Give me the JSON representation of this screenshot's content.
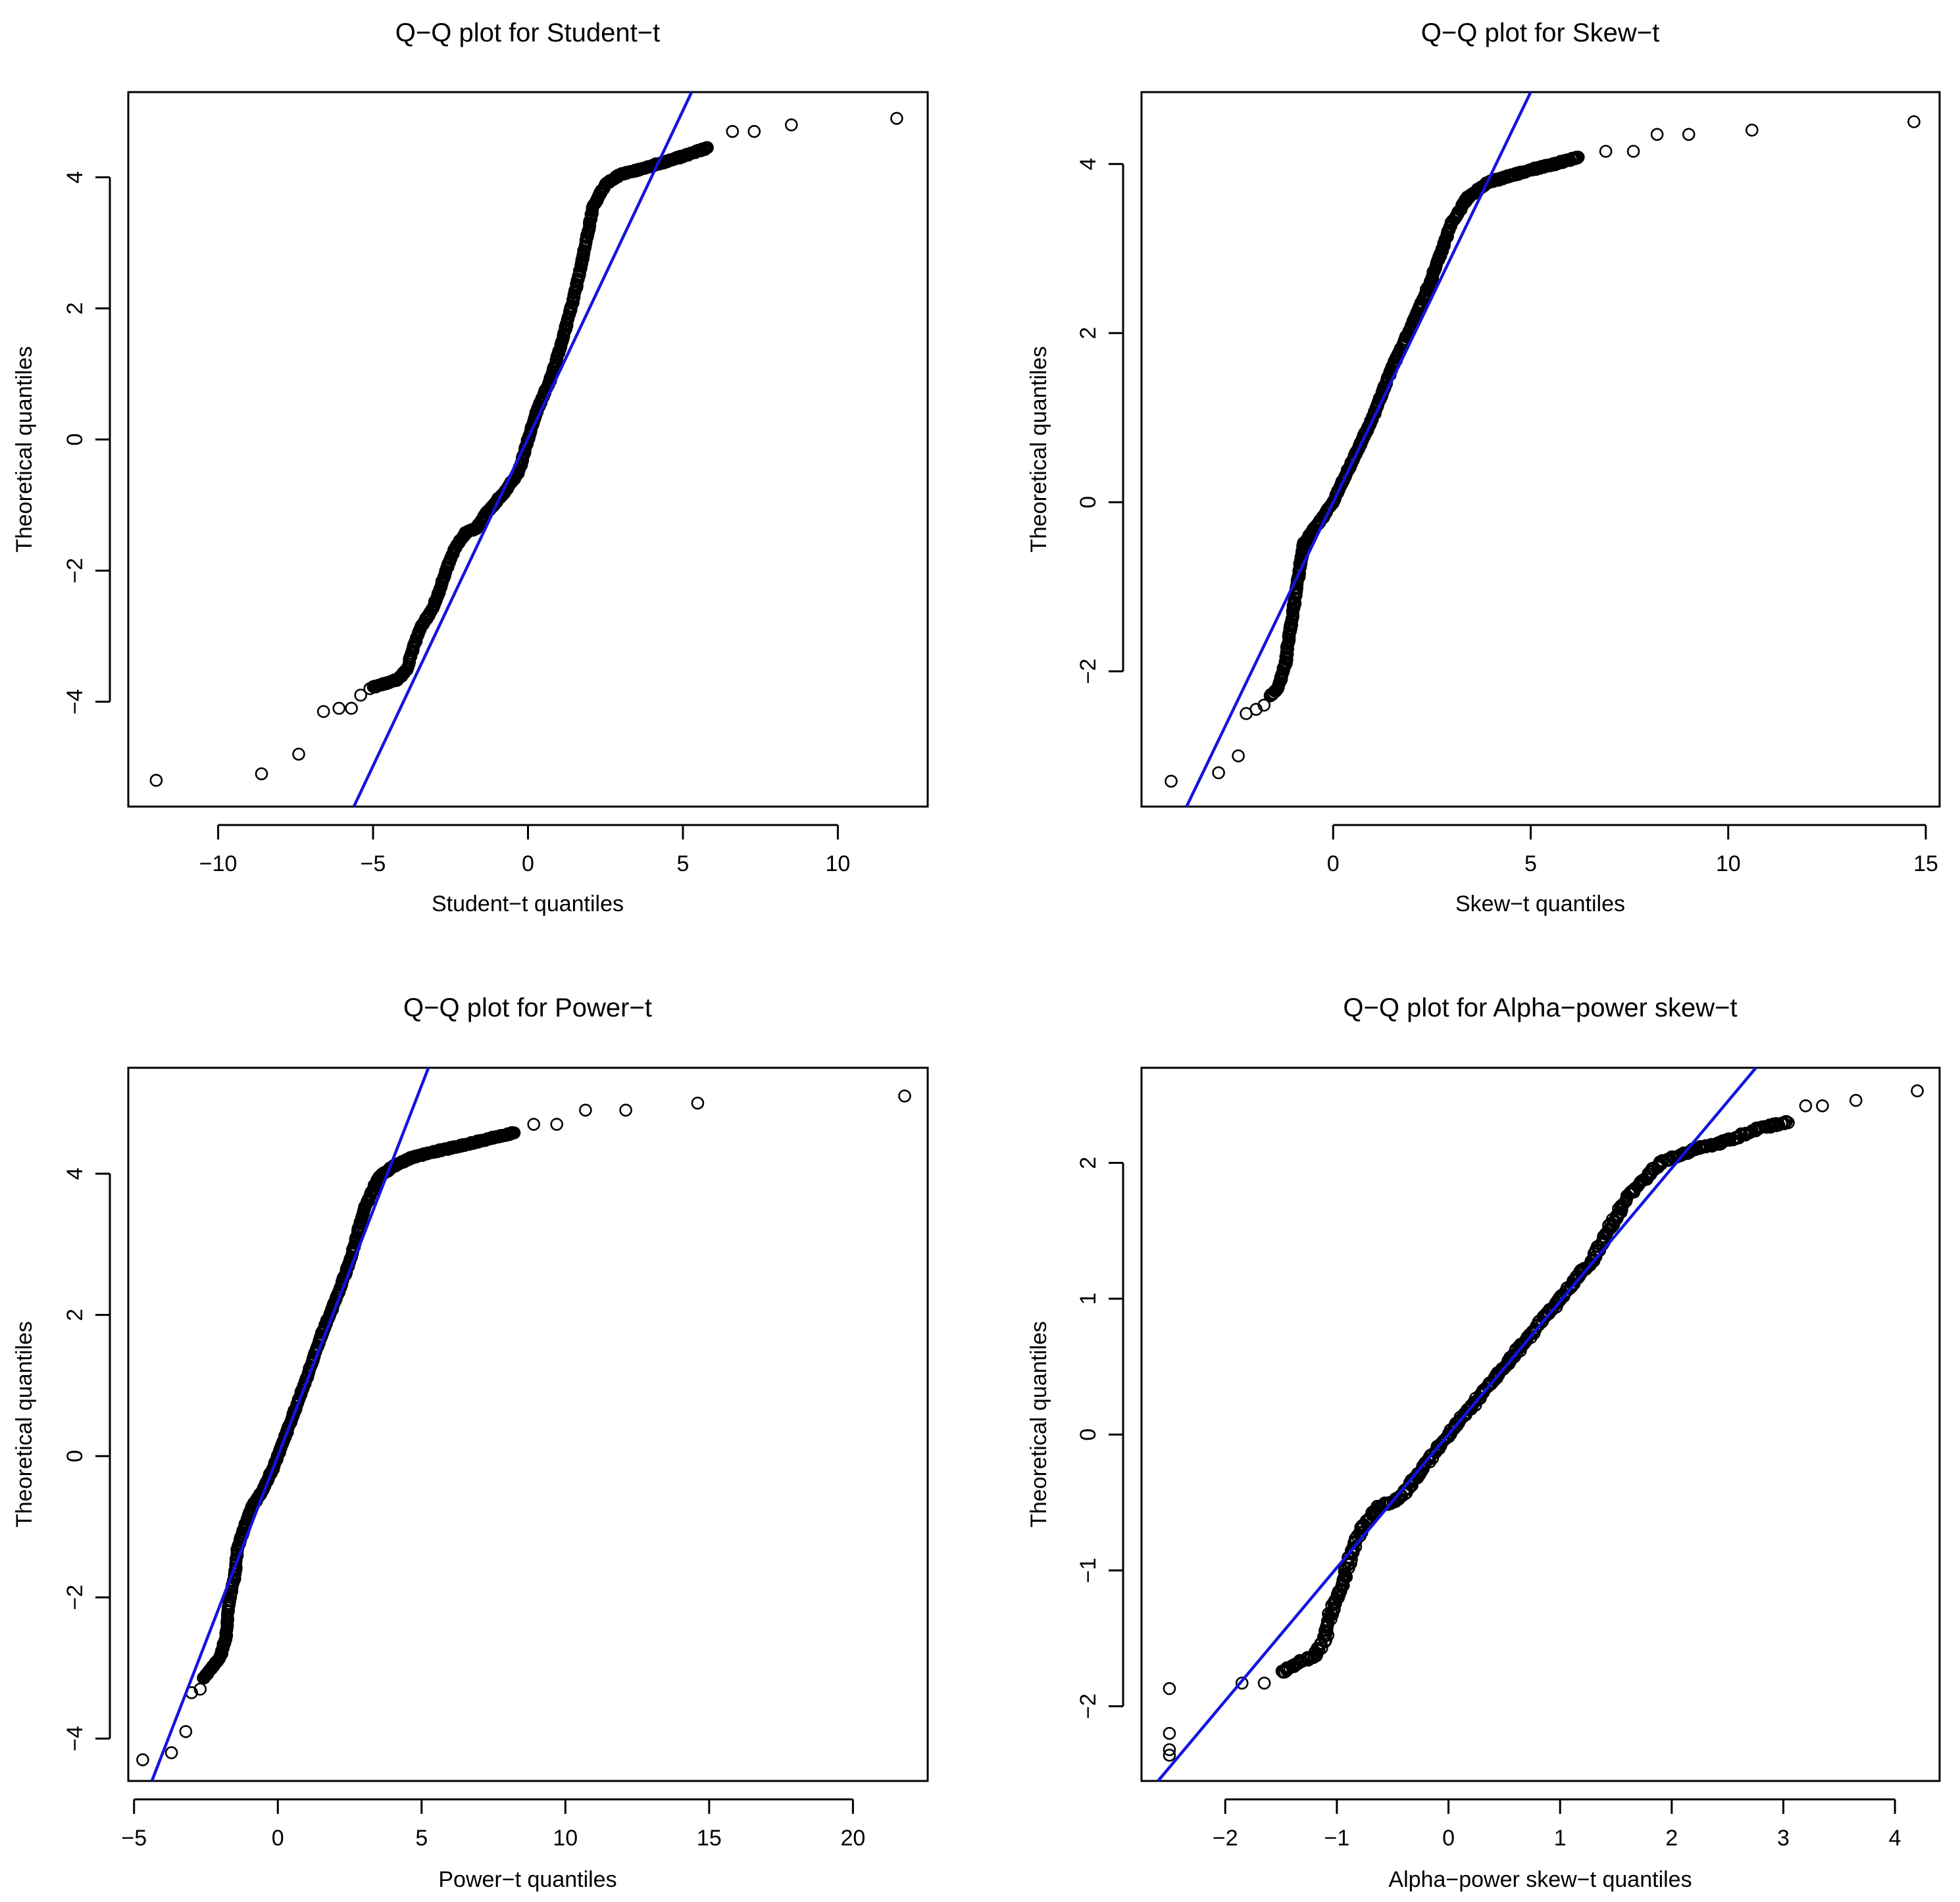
{
  "colors": {
    "reference_line": "#1414E0",
    "points": "#000000"
  },
  "chart_data": [
    {
      "type": "scatter",
      "id": "student",
      "title": "Q−Q plot for  Student−t",
      "xlabel": "Student−t quantiles",
      "ylabel": "Theoretical quantiles",
      "xlim": [
        -12.9,
        12.9
      ],
      "ylim": [
        -5.6,
        5.3
      ],
      "xticks": [
        -10,
        -5,
        0,
        5,
        10
      ],
      "xtick_labels": [
        "−10",
        "−5",
        "0",
        "5",
        "10"
      ],
      "yticks": [
        -4,
        -2,
        0,
        2,
        4
      ],
      "ytick_labels": [
        "−4",
        "−2",
        "0",
        "2",
        "4"
      ],
      "ref_line": {
        "slope": 1.0,
        "intercept": 0.02
      },
      "outlier_points": [
        [
          -12,
          -5.2
        ],
        [
          -8.6,
          -5.1
        ],
        [
          -7.4,
          -4.8
        ],
        [
          -6.6,
          -4.15
        ],
        [
          -6.1,
          -4.1
        ],
        [
          -5.7,
          -4.1
        ],
        [
          -5.4,
          -3.9
        ],
        [
          -5.1,
          -3.8
        ],
        [
          6.6,
          4.7
        ],
        [
          7.3,
          4.7
        ],
        [
          8.5,
          4.8
        ],
        [
          11.9,
          4.9
        ]
      ],
      "quantile_curve": [
        [
          -5.0,
          -3.78
        ],
        [
          -4.6,
          -3.72
        ],
        [
          -4.2,
          -3.66
        ],
        [
          -3.9,
          -3.5
        ],
        [
          -3.75,
          -3.25
        ],
        [
          -3.5,
          -2.9
        ],
        [
          -3.1,
          -2.6
        ],
        [
          -2.85,
          -2.3
        ],
        [
          -2.65,
          -2.0
        ],
        [
          -2.35,
          -1.65
        ],
        [
          -2.0,
          -1.42
        ],
        [
          -1.65,
          -1.35
        ],
        [
          -1.3,
          -1.1
        ],
        [
          -0.75,
          -0.8
        ],
        [
          -0.3,
          -0.5
        ],
        [
          0.0,
          0.0
        ],
        [
          0.3,
          0.45
        ],
        [
          0.75,
          0.95
        ],
        [
          1.1,
          1.5
        ],
        [
          1.45,
          2.1
        ],
        [
          1.8,
          2.85
        ],
        [
          2.1,
          3.55
        ],
        [
          2.5,
          3.9
        ],
        [
          3.0,
          4.05
        ],
        [
          3.6,
          4.12
        ],
        [
          4.3,
          4.22
        ],
        [
          5.0,
          4.32
        ],
        [
          5.8,
          4.45
        ]
      ]
    },
    {
      "type": "scatter",
      "id": "skew",
      "title": "Q−Q plot for  Skew−t",
      "xlabel": "Skew−t quantiles",
      "ylabel": "Theoretical quantiles",
      "xlim": [
        -4.85,
        15.35
      ],
      "ylim": [
        -3.6,
        4.85
      ],
      "xticks": [
        0,
        5,
        10,
        15
      ],
      "xtick_labels": [
        "0",
        "5",
        "10",
        "15"
      ],
      "yticks": [
        -2,
        0,
        2,
        4
      ],
      "ytick_labels": [
        "−2",
        "0",
        "2",
        "4"
      ],
      "ref_line": {
        "slope": 0.97,
        "intercept": 0.0
      },
      "outlier_points": [
        [
          -4.1,
          -3.3
        ],
        [
          -2.9,
          -3.2
        ],
        [
          -2.4,
          -3.0
        ],
        [
          -2.2,
          -2.5
        ],
        [
          -1.95,
          -2.45
        ],
        [
          -1.75,
          -2.4
        ],
        [
          6.9,
          4.15
        ],
        [
          7.6,
          4.15
        ],
        [
          8.2,
          4.35
        ],
        [
          9.0,
          4.35
        ],
        [
          10.6,
          4.4
        ],
        [
          14.7,
          4.5
        ]
      ],
      "quantile_curve": [
        [
          -1.6,
          -2.3
        ],
        [
          -1.4,
          -2.2
        ],
        [
          -1.3,
          -2.05
        ],
        [
          -1.2,
          -1.9
        ],
        [
          -1.15,
          -1.7
        ],
        [
          -1.05,
          -1.4
        ],
        [
          -0.95,
          -1.1
        ],
        [
          -0.85,
          -0.8
        ],
        [
          -0.75,
          -0.5
        ],
        [
          -0.55,
          -0.35
        ],
        [
          -0.3,
          -0.2
        ],
        [
          0.0,
          0.0
        ],
        [
          0.5,
          0.5
        ],
        [
          1.0,
          1.0
        ],
        [
          1.5,
          1.6
        ],
        [
          2.0,
          2.1
        ],
        [
          2.5,
          2.65
        ],
        [
          3.0,
          3.3
        ],
        [
          3.4,
          3.6
        ],
        [
          3.9,
          3.78
        ],
        [
          4.4,
          3.85
        ],
        [
          5.0,
          3.93
        ],
        [
          5.6,
          4.0
        ],
        [
          6.2,
          4.08
        ]
      ]
    },
    {
      "type": "scatter",
      "id": "power",
      "title": "Q−Q plot for  Power−t",
      "xlabel": "Power−t quantiles",
      "ylabel": "Theoretical quantiles",
      "xlim": [
        -5.2,
        22.6
      ],
      "ylim": [
        -4.6,
        5.5
      ],
      "xticks": [
        -5,
        0,
        5,
        10,
        15,
        20
      ],
      "xtick_labels": [
        "−5",
        "0",
        "5",
        "10",
        "15",
        "20"
      ],
      "yticks": [
        -4,
        -2,
        0,
        2,
        4
      ],
      "ytick_labels": [
        "−4",
        "−2",
        "0",
        "2",
        "4"
      ],
      "ref_line": {
        "slope": 1.05,
        "intercept": 0.0
      },
      "outlier_points": [
        [
          -4.7,
          -4.3
        ],
        [
          -3.7,
          -4.2
        ],
        [
          -3.2,
          -3.9
        ],
        [
          -3.0,
          -3.35
        ],
        [
          -2.7,
          -3.3
        ],
        [
          8.9,
          4.7
        ],
        [
          9.7,
          4.7
        ],
        [
          10.7,
          4.9
        ],
        [
          12.1,
          4.9
        ],
        [
          14.6,
          5.0
        ],
        [
          21.8,
          5.1
        ]
      ],
      "quantile_curve": [
        [
          -2.6,
          -3.15
        ],
        [
          -2.3,
          -3.0
        ],
        [
          -2.0,
          -2.85
        ],
        [
          -1.8,
          -2.55
        ],
        [
          -1.7,
          -2.1
        ],
        [
          -1.5,
          -1.7
        ],
        [
          -1.4,
          -1.3
        ],
        [
          -1.15,
          -1.0
        ],
        [
          -0.9,
          -0.72
        ],
        [
          -0.55,
          -0.5
        ],
        [
          -0.2,
          -0.2
        ],
        [
          0.0,
          0.0
        ],
        [
          0.5,
          0.55
        ],
        [
          1.0,
          1.1
        ],
        [
          1.5,
          1.7
        ],
        [
          2.0,
          2.2
        ],
        [
          2.5,
          2.75
        ],
        [
          3.0,
          3.5
        ],
        [
          3.5,
          3.95
        ],
        [
          4.0,
          4.1
        ],
        [
          4.6,
          4.22
        ],
        [
          5.3,
          4.3
        ],
        [
          6.2,
          4.38
        ],
        [
          7.2,
          4.48
        ],
        [
          8.2,
          4.58
        ]
      ]
    },
    {
      "type": "scatter",
      "id": "alpha",
      "title": "Q−Q plot for Alpha−power skew−t",
      "xlabel": "Alpha−power skew−t quantiles",
      "ylabel": "Theoretical quantiles",
      "xlim": [
        -2.75,
        4.4
      ],
      "ylim": [
        -2.55,
        2.7
      ],
      "xticks": [
        -2,
        -1,
        0,
        1,
        2,
        3,
        4
      ],
      "xtick_labels": [
        "−2",
        "−1",
        "0",
        "1",
        "2",
        "3",
        "4"
      ],
      "yticks": [
        -2,
        -1,
        0,
        1,
        2
      ],
      "ytick_labels": [
        "−2",
        "−1",
        "0",
        "1",
        "2"
      ],
      "ref_line": {
        "slope": 0.98,
        "intercept": 0.0
      },
      "outlier_points": [
        [
          -2.5,
          -1.87
        ],
        [
          -2.5,
          -2.2
        ],
        [
          -2.5,
          -2.32
        ],
        [
          -2.5,
          -2.36
        ],
        [
          -1.85,
          -1.83
        ],
        [
          -1.65,
          -1.83
        ],
        [
          3.2,
          2.42
        ],
        [
          3.35,
          2.42
        ],
        [
          3.65,
          2.46
        ],
        [
          4.2,
          2.53
        ]
      ],
      "quantile_curve": [
        [
          -1.5,
          -1.75
        ],
        [
          -1.35,
          -1.68
        ],
        [
          -1.2,
          -1.63
        ],
        [
          -1.1,
          -1.5
        ],
        [
          -1.05,
          -1.3
        ],
        [
          -0.95,
          -1.1
        ],
        [
          -0.85,
          -0.82
        ],
        [
          -0.75,
          -0.65
        ],
        [
          -0.62,
          -0.53
        ],
        [
          -0.45,
          -0.48
        ],
        [
          -0.3,
          -0.32
        ],
        [
          0.0,
          0.0
        ],
        [
          0.5,
          0.5
        ],
        [
          1.0,
          1.0
        ],
        [
          1.3,
          1.3
        ],
        [
          1.6,
          1.75
        ],
        [
          1.9,
          2.0
        ],
        [
          2.2,
          2.1
        ],
        [
          2.5,
          2.16
        ],
        [
          2.8,
          2.26
        ],
        [
          3.05,
          2.3
        ]
      ]
    }
  ]
}
